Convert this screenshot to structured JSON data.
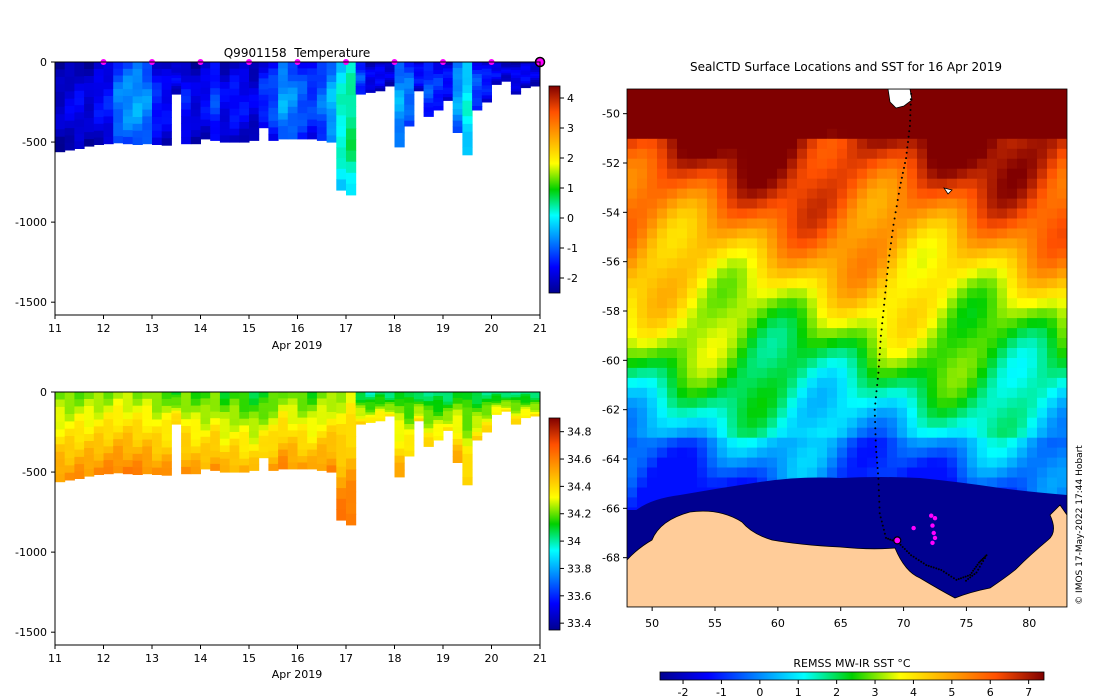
{
  "chart_data": [
    {
      "type": "heatmap",
      "title": "Q9901158  Temperature",
      "xlabel": "Apr 2019",
      "ylabel": "",
      "x_ticks": [
        "11",
        "12",
        "13",
        "14",
        "15",
        "16",
        "17",
        "18",
        "19",
        "20",
        "21"
      ],
      "xlim": [
        11,
        21
      ],
      "y_ticks": [
        "0",
        "-500",
        "-1000",
        "-1500"
      ],
      "ylim": [
        -1580,
        0
      ],
      "colorbar_ticks": [
        "4",
        "3",
        "2",
        "1",
        "0",
        "-1",
        "-2"
      ],
      "colorbar_range": [
        -2.5,
        4.4
      ],
      "colormap": "jet",
      "profile_markers_x": [
        12,
        13,
        14,
        15,
        16,
        17,
        18,
        19,
        20
      ],
      "marker_color": "#ff00ff",
      "latest_profile_x": 21,
      "profiles": [
        {
          "t": 11.0,
          "depth": 560,
          "v": -2.1
        },
        {
          "t": 11.2,
          "depth": 550,
          "v": -1.9
        },
        {
          "t": 11.4,
          "depth": 540,
          "v": -1.8
        },
        {
          "t": 11.6,
          "depth": 525,
          "v": -2.0
        },
        {
          "t": 11.8,
          "depth": 515,
          "v": -1.7
        },
        {
          "t": 12.0,
          "depth": 510,
          "v": -1.6
        },
        {
          "t": 12.2,
          "depth": 505,
          "v": -0.9
        },
        {
          "t": 12.4,
          "depth": 510,
          "v": -0.7
        },
        {
          "t": 12.6,
          "depth": 515,
          "v": -0.6
        },
        {
          "t": 12.8,
          "depth": 510,
          "v": -0.8
        },
        {
          "t": 13.0,
          "depth": 515,
          "v": -1.5
        },
        {
          "t": 13.2,
          "depth": 520,
          "v": -1.7
        },
        {
          "t": 13.4,
          "depth": 200,
          "v": -1.8
        },
        {
          "t": 13.6,
          "depth": 510,
          "v": -1.6
        },
        {
          "t": 13.8,
          "depth": 510,
          "v": -1.9
        },
        {
          "t": 14.0,
          "depth": 480,
          "v": -1.7
        },
        {
          "t": 14.2,
          "depth": 490,
          "v": -1.3
        },
        {
          "t": 14.4,
          "depth": 500,
          "v": -1.8
        },
        {
          "t": 14.6,
          "depth": 500,
          "v": -1.6
        },
        {
          "t": 14.8,
          "depth": 500,
          "v": -1.7
        },
        {
          "t": 15.0,
          "depth": 490,
          "v": -1.9
        },
        {
          "t": 15.2,
          "depth": 410,
          "v": -1.4
        },
        {
          "t": 15.4,
          "depth": 490,
          "v": -1.2
        },
        {
          "t": 15.6,
          "depth": 480,
          "v": -0.6
        },
        {
          "t": 15.8,
          "depth": 480,
          "v": -0.8
        },
        {
          "t": 16.0,
          "depth": 480,
          "v": -1.1
        },
        {
          "t": 16.2,
          "depth": 480,
          "v": -1.3
        },
        {
          "t": 16.4,
          "depth": 490,
          "v": -1.0
        },
        {
          "t": 16.6,
          "depth": 500,
          "v": -0.5
        },
        {
          "t": 16.8,
          "depth": 800,
          "v": 0.2
        },
        {
          "t": 17.0,
          "depth": 830,
          "v": 0.5
        },
        {
          "t": 17.2,
          "depth": 200,
          "v": -1.2
        },
        {
          "t": 17.4,
          "depth": 190,
          "v": -1.8
        },
        {
          "t": 17.6,
          "depth": 180,
          "v": -1.7
        },
        {
          "t": 17.8,
          "depth": 150,
          "v": -1.9
        },
        {
          "t": 18.0,
          "depth": 530,
          "v": -0.6
        },
        {
          "t": 18.2,
          "depth": 400,
          "v": -0.9
        },
        {
          "t": 18.4,
          "depth": 180,
          "v": -1.6
        },
        {
          "t": 18.6,
          "depth": 340,
          "v": -1.2
        },
        {
          "t": 18.8,
          "depth": 300,
          "v": -1.4
        },
        {
          "t": 19.0,
          "depth": 240,
          "v": -1.6
        },
        {
          "t": 19.2,
          "depth": 440,
          "v": -0.6
        },
        {
          "t": 19.4,
          "depth": 580,
          "v": 0.0
        },
        {
          "t": 19.6,
          "depth": 300,
          "v": -1.2
        },
        {
          "t": 19.8,
          "depth": 250,
          "v": -1.5
        },
        {
          "t": 20.0,
          "depth": 140,
          "v": -1.7
        },
        {
          "t": 20.2,
          "depth": 120,
          "v": -1.9
        },
        {
          "t": 20.4,
          "depth": 200,
          "v": -1.8
        },
        {
          "t": 20.6,
          "depth": 160,
          "v": -1.7
        },
        {
          "t": 20.8,
          "depth": 150,
          "v": -1.9
        }
      ]
    },
    {
      "type": "heatmap",
      "title": "",
      "xlabel": "Apr 2019",
      "ylabel": "",
      "x_ticks": [
        "11",
        "12",
        "13",
        "14",
        "15",
        "16",
        "17",
        "18",
        "19",
        "20",
        "21"
      ],
      "xlim": [
        11,
        21
      ],
      "y_ticks": [
        "0",
        "-500",
        "-1000",
        "-1500"
      ],
      "ylim": [
        -1580,
        0
      ],
      "colorbar_ticks": [
        "34.8",
        "34.6",
        "34.4",
        "34.2",
        "34",
        "33.8",
        "33.6",
        "33.4"
      ],
      "colorbar_range": [
        33.35,
        34.9
      ],
      "colormap": "jet",
      "profiles": [
        {
          "t": 11.0,
          "depth": 560,
          "v": 34.55
        },
        {
          "t": 11.2,
          "depth": 550,
          "v": 34.55
        },
        {
          "t": 11.4,
          "depth": 540,
          "v": 34.56
        },
        {
          "t": 11.6,
          "depth": 525,
          "v": 34.56
        },
        {
          "t": 11.8,
          "depth": 515,
          "v": 34.57
        },
        {
          "t": 12.0,
          "depth": 510,
          "v": 34.58
        },
        {
          "t": 12.2,
          "depth": 505,
          "v": 34.6
        },
        {
          "t": 12.4,
          "depth": 510,
          "v": 34.6
        },
        {
          "t": 12.6,
          "depth": 515,
          "v": 34.59
        },
        {
          "t": 12.8,
          "depth": 510,
          "v": 34.58
        },
        {
          "t": 13.0,
          "depth": 515,
          "v": 34.55
        },
        {
          "t": 13.2,
          "depth": 520,
          "v": 34.55
        },
        {
          "t": 13.4,
          "depth": 200,
          "v": 34.45
        },
        {
          "t": 13.6,
          "depth": 510,
          "v": 34.55
        },
        {
          "t": 13.8,
          "depth": 510,
          "v": 34.52
        },
        {
          "t": 14.0,
          "depth": 480,
          "v": 34.5
        },
        {
          "t": 14.2,
          "depth": 490,
          "v": 34.55
        },
        {
          "t": 14.4,
          "depth": 500,
          "v": 34.48
        },
        {
          "t": 14.6,
          "depth": 500,
          "v": 34.5
        },
        {
          "t": 14.8,
          "depth": 500,
          "v": 34.48
        },
        {
          "t": 15.0,
          "depth": 490,
          "v": 34.45
        },
        {
          "t": 15.2,
          "depth": 410,
          "v": 34.45
        },
        {
          "t": 15.4,
          "depth": 490,
          "v": 34.52
        },
        {
          "t": 15.6,
          "depth": 480,
          "v": 34.58
        },
        {
          "t": 15.8,
          "depth": 480,
          "v": 34.55
        },
        {
          "t": 16.0,
          "depth": 480,
          "v": 34.52
        },
        {
          "t": 16.2,
          "depth": 480,
          "v": 34.5
        },
        {
          "t": 16.4,
          "depth": 490,
          "v": 34.55
        },
        {
          "t": 16.6,
          "depth": 500,
          "v": 34.58
        },
        {
          "t": 16.8,
          "depth": 800,
          "v": 34.62
        },
        {
          "t": 17.0,
          "depth": 830,
          "v": 34.65
        },
        {
          "t": 17.2,
          "depth": 200,
          "v": 34.4
        },
        {
          "t": 17.4,
          "depth": 190,
          "v": 34.35
        },
        {
          "t": 17.6,
          "depth": 180,
          "v": 34.4
        },
        {
          "t": 17.8,
          "depth": 150,
          "v": 34.35
        },
        {
          "t": 18.0,
          "depth": 530,
          "v": 34.5
        },
        {
          "t": 18.2,
          "depth": 400,
          "v": 34.42
        },
        {
          "t": 18.4,
          "depth": 180,
          "v": 34.38
        },
        {
          "t": 18.6,
          "depth": 340,
          "v": 34.4
        },
        {
          "t": 18.8,
          "depth": 300,
          "v": 34.38
        },
        {
          "t": 19.0,
          "depth": 240,
          "v": 34.36
        },
        {
          "t": 19.2,
          "depth": 440,
          "v": 34.5
        },
        {
          "t": 19.4,
          "depth": 580,
          "v": 34.45
        },
        {
          "t": 19.6,
          "depth": 300,
          "v": 34.4
        },
        {
          "t": 19.8,
          "depth": 250,
          "v": 34.4
        },
        {
          "t": 20.0,
          "depth": 140,
          "v": 34.38
        },
        {
          "t": 20.2,
          "depth": 120,
          "v": 34.36
        },
        {
          "t": 20.4,
          "depth": 200,
          "v": 34.4
        },
        {
          "t": 20.6,
          "depth": 160,
          "v": 34.38
        },
        {
          "t": 20.8,
          "depth": 150,
          "v": 34.36
        }
      ]
    },
    {
      "type": "heatmap",
      "title": "SealCTD Surface Locations and SST for 16 Apr 2019",
      "xlabel": "",
      "ylabel": "",
      "x_ticks": [
        "50",
        "55",
        "60",
        "65",
        "70",
        "75",
        "80"
      ],
      "xlim": [
        48,
        83
      ],
      "y_ticks": [
        "-50",
        "-52",
        "-54",
        "-56",
        "-58",
        "-60",
        "-62",
        "-64",
        "-66",
        "-68"
      ],
      "ylim": [
        -70,
        -49
      ],
      "colorbar_label": "REMSS MW-IR SST °C",
      "colorbar_ticks": [
        "-2",
        "-1",
        "0",
        "1",
        "2",
        "3",
        "4",
        "5",
        "6",
        "7"
      ],
      "colorbar_range": [
        -2.6,
        7.4
      ],
      "colormap": "jet",
      "land_color": "#ffcc99",
      "ice_edge_lat": -65.3,
      "track": [
        {
          "lon": 70.6,
          "lat": -49.2
        },
        {
          "lon": 70.5,
          "lat": -50.5
        },
        {
          "lon": 70.2,
          "lat": -51.8
        },
        {
          "lon": 69.7,
          "lat": -53.0
        },
        {
          "lon": 69.2,
          "lat": -54.5
        },
        {
          "lon": 68.8,
          "lat": -56.0
        },
        {
          "lon": 68.5,
          "lat": -57.5
        },
        {
          "lon": 68.2,
          "lat": -59.0
        },
        {
          "lon": 68.0,
          "lat": -60.5
        },
        {
          "lon": 67.7,
          "lat": -62.0
        },
        {
          "lon": 67.8,
          "lat": -63.5
        },
        {
          "lon": 68.0,
          "lat": -64.8
        },
        {
          "lon": 68.1,
          "lat": -66.2
        },
        {
          "lon": 68.6,
          "lat": -67.2
        },
        {
          "lon": 69.6,
          "lat": -67.4
        },
        {
          "lon": 70.6,
          "lat": -67.9
        },
        {
          "lon": 71.8,
          "lat": -68.3
        },
        {
          "lon": 73.0,
          "lat": -68.5
        },
        {
          "lon": 74.2,
          "lat": -68.9
        },
        {
          "lon": 75.3,
          "lat": -68.7
        },
        {
          "lon": 76.0,
          "lat": -68.2
        },
        {
          "lon": 76.6,
          "lat": -67.9
        },
        {
          "lon": 75.8,
          "lat": -68.6
        },
        {
          "lon": 74.8,
          "lat": -69.0
        }
      ],
      "surface_locations": [
        {
          "lon": 72.2,
          "lat": -66.3
        },
        {
          "lon": 72.5,
          "lat": -66.4
        },
        {
          "lon": 72.3,
          "lat": -66.7
        },
        {
          "lon": 72.4,
          "lat": -67.0
        },
        {
          "lon": 72.5,
          "lat": -67.2
        },
        {
          "lon": 72.3,
          "lat": -67.4
        },
        {
          "lon": 70.8,
          "lat": -66.8
        }
      ],
      "latest_location": {
        "lon": 69.5,
        "lat": -67.3
      },
      "credit": "© IMOS 17-May-2022 17:44 Hobart"
    }
  ]
}
